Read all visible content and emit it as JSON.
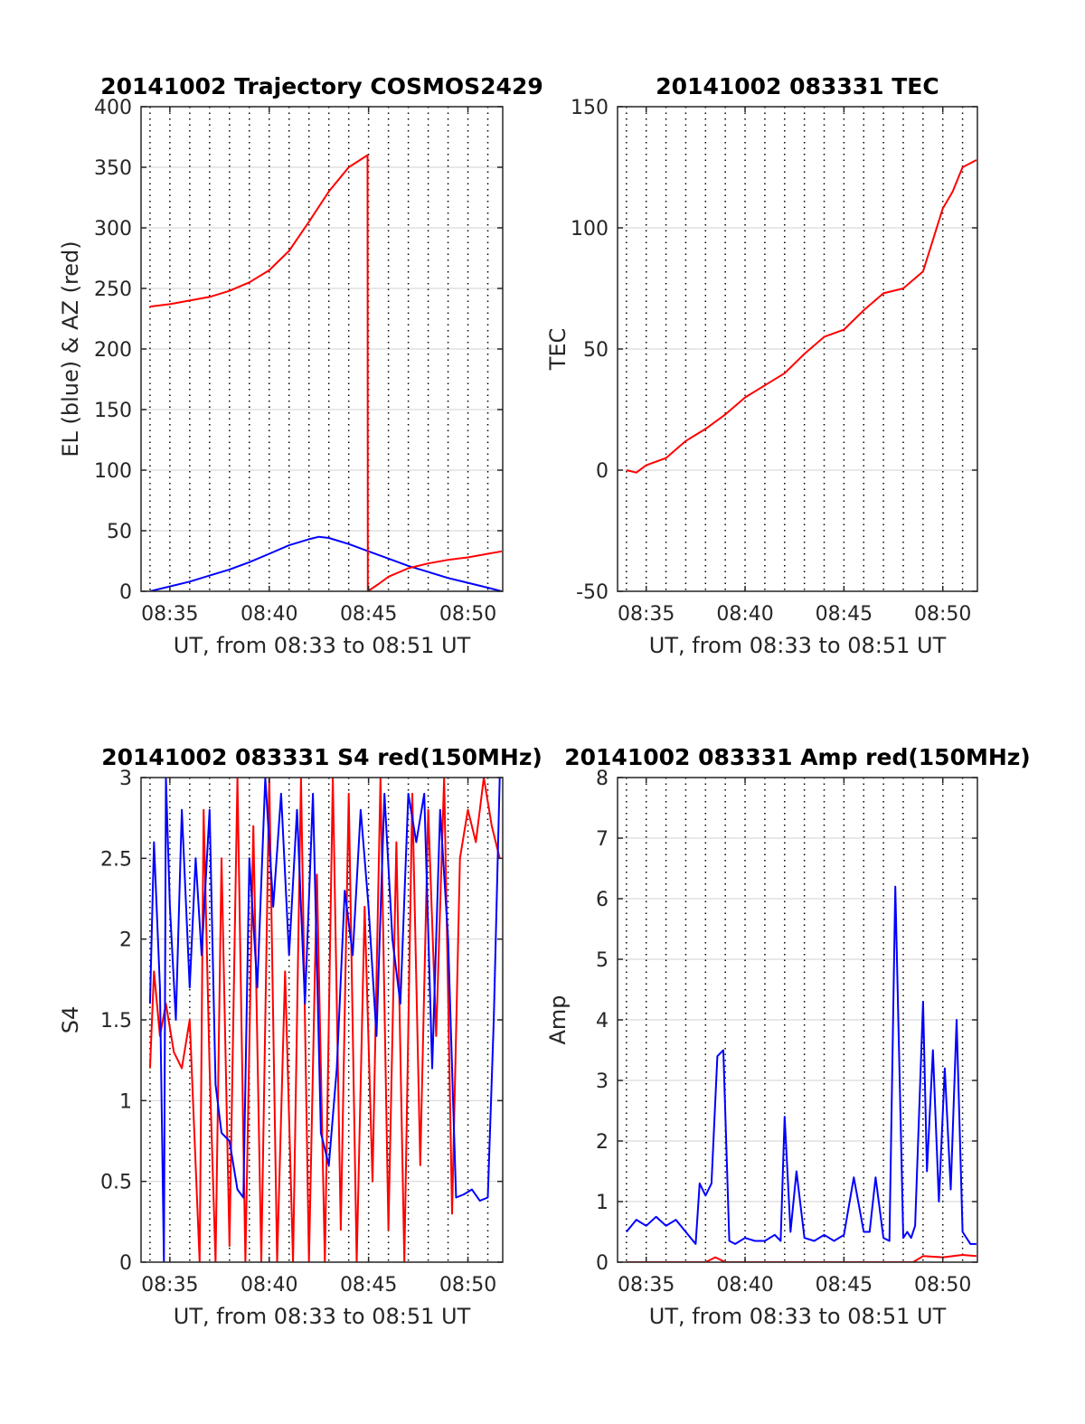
{
  "colors": {
    "red": "#ff0000",
    "blue": "#0000ff",
    "grid": "#d9d9d9",
    "vgrid": "#000000",
    "axis": "#262626"
  },
  "chart_data": [
    {
      "type": "line",
      "title": "20141002 Trajectory COSMOS2429",
      "xlabel": "UT, from 08:33 to 08:51 UT",
      "ylabel": "EL (blue) & AZ (red)",
      "xlim": [
        8.55,
        26.75
      ],
      "ylim": [
        0,
        400
      ],
      "xticks": [
        10,
        15,
        20,
        25
      ],
      "xticklabels": [
        "08:35",
        "08:40",
        "08:45",
        "08:50"
      ],
      "yticks": [
        0,
        50,
        100,
        150,
        200,
        250,
        300,
        350,
        400
      ],
      "yticklabels": [
        "0",
        "50",
        "100",
        "150",
        "200",
        "250",
        "300",
        "350",
        "400"
      ],
      "grid": "horizontal solid, vertical dotted every 1 min",
      "series": [
        {
          "color": "blue",
          "x": [
            9.0,
            10.0,
            11.0,
            12.0,
            13.0,
            14.0,
            15.0,
            16.0,
            17.0,
            17.5,
            18.0,
            19.0,
            20.0,
            21.0,
            22.0,
            23.0,
            24.0,
            25.0,
            26.0,
            26.7
          ],
          "y": [
            0,
            4,
            8,
            13,
            18,
            24,
            31,
            38,
            43,
            45,
            44,
            39,
            33,
            27,
            21,
            16,
            11,
            7,
            3,
            0
          ]
        },
        {
          "color": "red",
          "x": [
            9.0,
            10.0,
            11.0,
            12.0,
            13.0,
            14.0,
            15.0,
            16.0,
            17.0,
            18.0,
            19.0,
            19.95,
            19.96,
            20.5,
            21.0,
            22.0,
            23.0,
            24.0,
            25.0,
            26.0,
            26.7
          ],
          "y": [
            235,
            237,
            240,
            243,
            248,
            255,
            265,
            281,
            305,
            330,
            350,
            360,
            0,
            6,
            12,
            19,
            23,
            26,
            28,
            31,
            33
          ]
        }
      ]
    },
    {
      "type": "line",
      "title": "20141002 083331 TEC",
      "xlabel": "UT, from 08:33 to 08:51 UT",
      "ylabel": "TEC",
      "xlim": [
        8.55,
        26.75
      ],
      "ylim": [
        -50,
        150
      ],
      "xticks": [
        10,
        15,
        20,
        25
      ],
      "xticklabels": [
        "08:35",
        "08:40",
        "08:45",
        "08:50"
      ],
      "yticks": [
        -50,
        0,
        50,
        100,
        150
      ],
      "yticklabels": [
        "-50",
        "0",
        "50",
        "100",
        "150"
      ],
      "grid": "horizontal solid, vertical dotted every 1 min",
      "series": [
        {
          "color": "red",
          "x": [
            9.0,
            9.5,
            10.0,
            11.0,
            12.0,
            13.0,
            14.0,
            15.0,
            16.0,
            17.0,
            18.0,
            19.0,
            20.0,
            21.0,
            22.0,
            23.0,
            24.0,
            24.5,
            25.0,
            25.5,
            26.0,
            26.7
          ],
          "y": [
            0,
            -1,
            2,
            5,
            12,
            17,
            23,
            30,
            35,
            40,
            48,
            55,
            58,
            66,
            73,
            75,
            82,
            95,
            108,
            115,
            125,
            128
          ]
        }
      ]
    },
    {
      "type": "line",
      "title": "20141002 083331 S4 red(150MHz)",
      "xlabel": "UT, from 08:33 to 08:51 UT",
      "ylabel": "S4",
      "xlim": [
        8.55,
        26.75
      ],
      "ylim": [
        0,
        3
      ],
      "xticks": [
        10,
        15,
        20,
        25
      ],
      "xticklabels": [
        "08:35",
        "08:40",
        "08:45",
        "08:50"
      ],
      "yticks": [
        0,
        0.5,
        1,
        1.5,
        2,
        2.5,
        3
      ],
      "yticklabels": [
        "0",
        "0.5",
        "1",
        "1.5",
        "2",
        "2.5",
        "3"
      ],
      "grid": "horizontal solid, vertical dotted every 1 min",
      "series": [
        {
          "color": "red",
          "x": [
            9.0,
            9.2,
            9.5,
            9.8,
            10.2,
            10.6,
            11.0,
            11.5,
            11.7,
            12.0,
            12.3,
            12.6,
            13.0,
            13.4,
            13.8,
            14.2,
            14.6,
            15.0,
            15.4,
            15.8,
            16.2,
            16.6,
            17.0,
            17.4,
            17.8,
            18.2,
            18.6,
            19.0,
            19.4,
            19.8,
            20.2,
            20.6,
            21.0,
            21.4,
            21.8,
            22.2,
            22.6,
            23.0,
            23.4,
            23.8,
            24.2,
            24.6,
            25.0,
            25.4,
            25.8,
            26.2,
            26.6
          ],
          "y": [
            1.2,
            1.8,
            1.4,
            1.6,
            1.3,
            1.2,
            1.5,
            0,
            2.8,
            1.2,
            0,
            2.5,
            0.1,
            3.0,
            0,
            2.7,
            0,
            3.0,
            0,
            1.8,
            0,
            3.0,
            0,
            2.4,
            0,
            3.0,
            0.2,
            2.9,
            0,
            2.2,
            0.5,
            3.0,
            0.2,
            2.6,
            0,
            2.9,
            0.6,
            2.8,
            1.4,
            3.0,
            0.3,
            2.5,
            2.8,
            2.6,
            3.0,
            2.7,
            2.5
          ]
        },
        {
          "color": "blue",
          "x": [
            9.0,
            9.2,
            9.5,
            9.7,
            9.8,
            10.0,
            10.3,
            10.6,
            11.0,
            11.3,
            11.6,
            12.0,
            12.3,
            12.6,
            13.0,
            13.4,
            13.7,
            14.0,
            14.4,
            14.8,
            15.2,
            15.6,
            16.0,
            16.4,
            16.8,
            17.2,
            17.6,
            18.0,
            18.4,
            18.8,
            19.2,
            19.6,
            20.0,
            20.4,
            20.8,
            21.2,
            21.6,
            22.0,
            22.4,
            22.8,
            23.2,
            23.6,
            24.0,
            24.4,
            24.8,
            25.2,
            25.6,
            26.0,
            26.3,
            26.6
          ],
          "y": [
            1.6,
            2.6,
            1.7,
            0,
            3.0,
            2.2,
            1.5,
            2.8,
            1.7,
            2.5,
            1.9,
            2.8,
            1.1,
            0.8,
            0.75,
            0.45,
            0.4,
            2.5,
            1.7,
            3.0,
            2.2,
            2.9,
            1.9,
            2.8,
            1.6,
            2.9,
            0.8,
            0.6,
            1.2,
            2.3,
            1.9,
            2.8,
            2.2,
            1.4,
            2.9,
            2.0,
            1.6,
            2.9,
            2.6,
            2.9,
            1.2,
            2.8,
            2.0,
            0.4,
            0.42,
            0.45,
            0.38,
            0.4,
            1.5,
            3.0
          ]
        }
      ]
    },
    {
      "type": "line",
      "title": "20141002 083331 Amp red(150MHz)",
      "xlabel": "UT, from 08:33 to 08:51 UT",
      "ylabel": "Amp",
      "xlim": [
        8.55,
        26.75
      ],
      "ylim": [
        0,
        8
      ],
      "xticks": [
        10,
        15,
        20,
        25
      ],
      "xticklabels": [
        "08:35",
        "08:40",
        "08:45",
        "08:50"
      ],
      "yticks": [
        0,
        1,
        2,
        3,
        4,
        5,
        6,
        7,
        8
      ],
      "yticklabels": [
        "0",
        "1",
        "2",
        "3",
        "4",
        "5",
        "6",
        "7",
        "8"
      ],
      "grid": "horizontal solid, vertical dotted every 1 min",
      "series": [
        {
          "color": "red",
          "x": [
            9.0,
            13.0,
            13.5,
            14.0,
            20.0,
            23.5,
            24.0,
            25.0,
            26.0,
            26.7
          ],
          "y": [
            0,
            0,
            0.08,
            0,
            0,
            0,
            0.1,
            0.08,
            0.12,
            0.1
          ]
        },
        {
          "color": "blue",
          "x": [
            9.0,
            9.5,
            10.0,
            10.5,
            11.0,
            11.5,
            12.0,
            12.5,
            12.7,
            13.0,
            13.3,
            13.6,
            13.9,
            14.2,
            14.5,
            15.0,
            15.5,
            16.0,
            16.5,
            16.8,
            17.0,
            17.3,
            17.6,
            18.0,
            18.5,
            19.0,
            19.5,
            20.0,
            20.5,
            21.0,
            21.3,
            21.6,
            22.0,
            22.3,
            22.6,
            23.0,
            23.2,
            23.4,
            23.6,
            24.0,
            24.2,
            24.5,
            24.8,
            25.1,
            25.4,
            25.7,
            26.0,
            26.4,
            26.7
          ],
          "y": [
            0.5,
            0.7,
            0.6,
            0.75,
            0.6,
            0.7,
            0.5,
            0.3,
            1.3,
            1.1,
            1.3,
            3.4,
            3.5,
            0.35,
            0.3,
            0.4,
            0.35,
            0.35,
            0.45,
            0.35,
            2.4,
            0.5,
            1.5,
            0.4,
            0.35,
            0.45,
            0.35,
            0.45,
            1.4,
            0.5,
            0.5,
            1.4,
            0.4,
            0.35,
            6.2,
            0.4,
            0.5,
            0.4,
            0.6,
            4.3,
            1.5,
            3.5,
            1.0,
            3.2,
            1.2,
            4.0,
            0.5,
            0.3,
            0.3
          ]
        }
      ]
    }
  ]
}
